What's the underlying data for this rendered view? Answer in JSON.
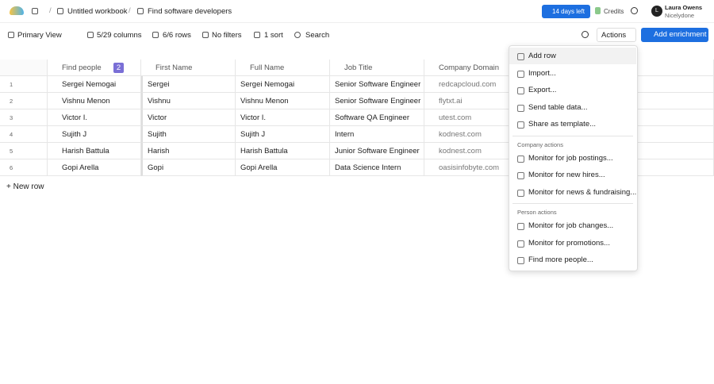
{
  "breadcrumb": {
    "workbook": "Untitled workbook",
    "table": "Find software developers"
  },
  "header": {
    "trial": "14 days left",
    "credits": "Credits",
    "user_initial": "L",
    "user_name": "Laura Owens",
    "user_org": "Nicelydone"
  },
  "toolbar": {
    "view": "Primary View",
    "columns": "5/29 columns",
    "rows": "6/6 rows",
    "filters": "No filters",
    "sort": "1 sort",
    "search": "Search",
    "actions": "Actions",
    "add_enrichment": "Add enrichment"
  },
  "table": {
    "columns": [
      "Find people",
      "First Name",
      "Full Name",
      "Job Title",
      "Company Domain"
    ],
    "badge": "2",
    "rows": [
      [
        "1",
        "Sergei Nemogai",
        "Sergei",
        "Sergei Nemogai",
        "Senior Software Engineer",
        "redcapcloud.com"
      ],
      [
        "2",
        "Vishnu Menon",
        "Vishnu",
        "Vishnu Menon",
        "Senior Software Engineer",
        "flytxt.ai"
      ],
      [
        "3",
        "Victor I.",
        "Victor",
        "Victor I.",
        "Software QA Engineer",
        "utest.com"
      ],
      [
        "4",
        "Sujith J",
        "Sujith",
        "Sujith J",
        "Intern",
        "kodnest.com"
      ],
      [
        "5",
        "Harish Battula",
        "Harish",
        "Harish Battula",
        "Junior Software Engineer",
        "kodnest.com"
      ],
      [
        "6",
        "Gopi Arella",
        "Gopi",
        "Gopi Arella",
        "Data Science Intern",
        "oasisinfobyte.com"
      ]
    ]
  },
  "new_row": "New row",
  "menu": {
    "items": [
      "Add row",
      "Import...",
      "Export...",
      "Send table data...",
      "Share as template..."
    ],
    "sections": [
      {
        "title": "Company actions",
        "items": [
          "Monitor for job postings...",
          "Monitor for new hires...",
          "Monitor for news & fundraising..."
        ]
      },
      {
        "title": "Person actions",
        "items": [
          "Monitor for job changes...",
          "Monitor for promotions...",
          "Find more people..."
        ]
      }
    ]
  }
}
